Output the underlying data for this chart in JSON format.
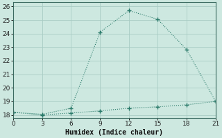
{
  "xlabel": "Humidex (Indice chaleur)",
  "line1_x": [
    0,
    3,
    6,
    9,
    12,
    15,
    18,
    21
  ],
  "line1_y": [
    18.2,
    18.05,
    18.5,
    24.1,
    25.7,
    25.05,
    22.8,
    19.0
  ],
  "line2_x": [
    0,
    3,
    6,
    9,
    12,
    15,
    18,
    21
  ],
  "line2_y": [
    18.2,
    18.0,
    18.15,
    18.3,
    18.5,
    18.6,
    18.75,
    19.0
  ],
  "line_color": "#2a7a6a",
  "bg_color": "#cde8e0",
  "grid_color": "#a8ccc4",
  "xlim": [
    0,
    21
  ],
  "ylim": [
    17.8,
    26.3
  ],
  "xticks": [
    0,
    3,
    6,
    9,
    12,
    15,
    18,
    21
  ],
  "yticks": [
    18,
    19,
    20,
    21,
    22,
    23,
    24,
    25,
    26
  ],
  "marker": "+",
  "markersize": 5,
  "linewidth": 0.8,
  "tick_labelsize": 6.5,
  "xlabel_fontsize": 7
}
